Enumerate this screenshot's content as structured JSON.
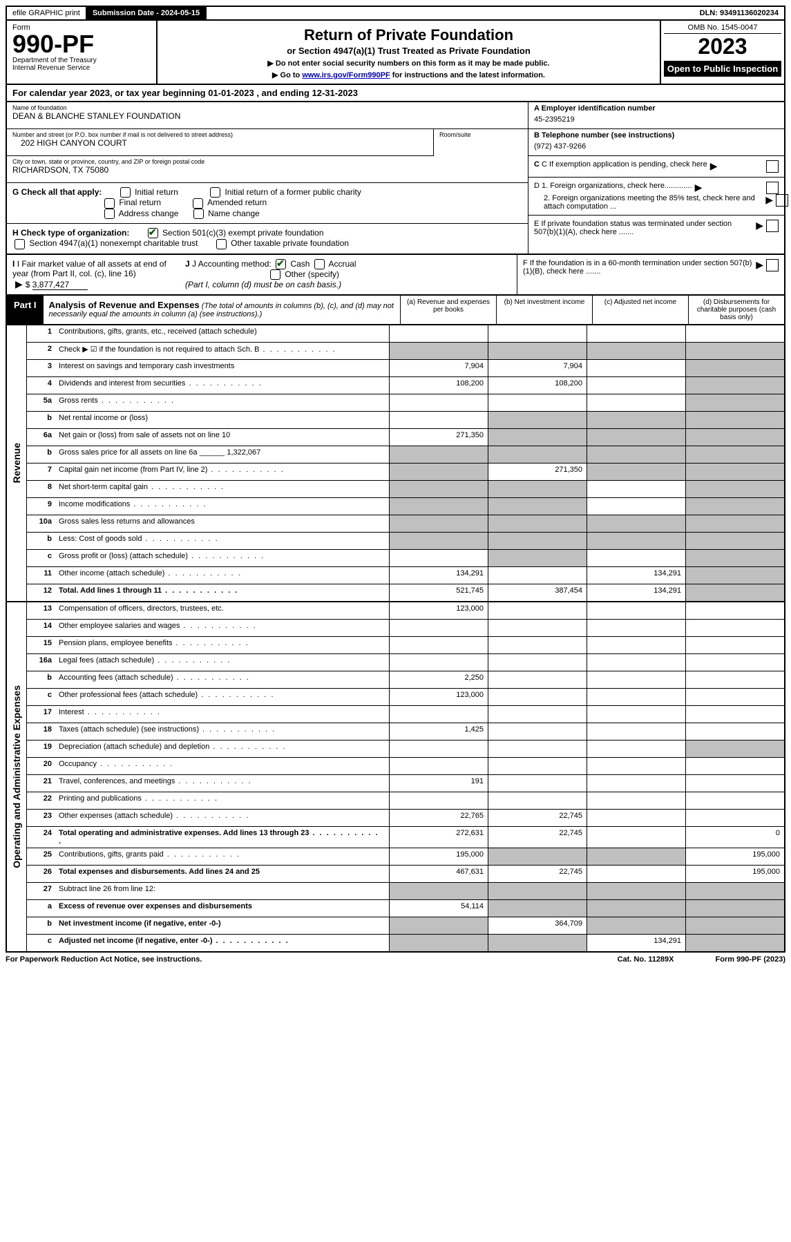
{
  "topbar": {
    "efile": "efile GRAPHIC print",
    "submission_label": "Submission Date - 2024-05-15",
    "dln": "DLN: 93491136020234"
  },
  "header": {
    "form_word": "Form",
    "form_num": "990-PF",
    "dept": "Department of the Treasury",
    "irs": "Internal Revenue Service",
    "title": "Return of Private Foundation",
    "subtitle": "or Section 4947(a)(1) Trust Treated as Private Foundation",
    "instr1": "▶ Do not enter social security numbers on this form as it may be made public.",
    "instr2_pre": "▶ Go to ",
    "instr2_link": "www.irs.gov/Form990PF",
    "instr2_post": " for instructions and the latest information.",
    "omb": "OMB No. 1545-0047",
    "year": "2023",
    "open": "Open to Public Inspection"
  },
  "cal": "For calendar year 2023, or tax year beginning 01-01-2023            , and ending 12-31-2023",
  "info": {
    "name_label": "Name of foundation",
    "name": "DEAN & BLANCHE STANLEY FOUNDATION",
    "addr_label": "Number and street (or P.O. box number if mail is not delivered to street address)",
    "addr": "202 HIGH CANYON COURT",
    "room_label": "Room/suite",
    "city_label": "City or town, state or province, country, and ZIP or foreign postal code",
    "city": "RICHARDSON, TX  75080",
    "ein_label": "A Employer identification number",
    "ein": "45-2395219",
    "phone_label": "B Telephone number (see instructions)",
    "phone": "(972) 437-9266",
    "c_label": "C If exemption application is pending, check here",
    "g_label": "G Check all that apply:",
    "g_opts": [
      "Initial return",
      "Final return",
      "Address change",
      "Initial return of a former public charity",
      "Amended return",
      "Name change"
    ],
    "d1": "D 1. Foreign organizations, check here.............",
    "d2": "2. Foreign organizations meeting the 85% test, check here and attach computation ...",
    "e": "E  If private foundation status was terminated under section 507(b)(1)(A), check here .......",
    "f": "F  If the foundation is in a 60-month termination under section 507(b)(1)(B), check here .......",
    "h_label": "H Check type of organization:",
    "h1": "Section 501(c)(3) exempt private foundation",
    "h2": "Section 4947(a)(1) nonexempt charitable trust",
    "h3": "Other taxable private foundation",
    "i_label": "I Fair market value of all assets at end of year (from Part II, col. (c), line 16)",
    "i_val": "3,877,427",
    "j_label": "J Accounting method:",
    "j_cash": "Cash",
    "j_accrual": "Accrual",
    "j_other": "Other (specify)",
    "j_note": "(Part I, column (d) must be on cash basis.)"
  },
  "part1": {
    "label": "Part I",
    "title": "Analysis of Revenue and Expenses",
    "title_note": "(The total of amounts in columns (b), (c), and (d) may not necessarily equal the amounts in column (a) (see instructions).)",
    "cols": {
      "a": "(a)   Revenue and expenses per books",
      "b": "(b)   Net investment income",
      "c": "(c)   Adjusted net income",
      "d": "(d)  Disbursements for charitable purposes (cash basis only)"
    }
  },
  "sides": {
    "revenue": "Revenue",
    "expenses": "Operating and Administrative Expenses"
  },
  "rows": [
    {
      "n": "1",
      "label": "Contributions, gifts, grants, etc., received (attach schedule)",
      "a": "",
      "b": "",
      "c": "",
      "d": "",
      "grey_d": false
    },
    {
      "n": "2",
      "label": "Check ▶ ☑ if the foundation is not required to attach Sch. B",
      "dotted": true,
      "a": "",
      "b": "",
      "c": "",
      "d": "",
      "grey_all": true,
      "noborder": true
    },
    {
      "n": "3",
      "label": "Interest on savings and temporary cash investments",
      "a": "7,904",
      "b": "7,904",
      "c": "",
      "d": "",
      "grey_d": true
    },
    {
      "n": "4",
      "label": "Dividends and interest from securities",
      "dotted": true,
      "a": "108,200",
      "b": "108,200",
      "c": "",
      "d": "",
      "grey_d": true
    },
    {
      "n": "5a",
      "label": "Gross rents",
      "dotted": true,
      "a": "",
      "b": "",
      "c": "",
      "d": "",
      "grey_d": true
    },
    {
      "n": "b",
      "label": "Net rental income or (loss)",
      "a": "",
      "b": "",
      "c": "",
      "d": "",
      "grey_bcd": true
    },
    {
      "n": "6a",
      "label": "Net gain or (loss) from sale of assets not on line 10",
      "a": "271,350",
      "b": "",
      "c": "",
      "d": "",
      "grey_bcd": true
    },
    {
      "n": "b",
      "label": "Gross sales price for all assets on line 6a ______ 1,322,067",
      "a": "",
      "b": "",
      "c": "",
      "d": "",
      "grey_all": true
    },
    {
      "n": "7",
      "label": "Capital gain net income (from Part IV, line 2)",
      "dotted": true,
      "a": "",
      "b": "271,350",
      "c": "",
      "d": "",
      "grey_a": true,
      "grey_cd": true
    },
    {
      "n": "8",
      "label": "Net short-term capital gain",
      "dotted": true,
      "a": "",
      "b": "",
      "c": "",
      "d": "",
      "grey_ab": true,
      "grey_d": true
    },
    {
      "n": "9",
      "label": "Income modifications",
      "dotted": true,
      "a": "",
      "b": "",
      "c": "",
      "d": "",
      "grey_ab": true,
      "grey_d": true
    },
    {
      "n": "10a",
      "label": "Gross sales less returns and allowances",
      "a": "",
      "b": "",
      "c": "",
      "d": "",
      "grey_all": true
    },
    {
      "n": "b",
      "label": "Less: Cost of goods sold",
      "dotted": true,
      "a": "",
      "b": "",
      "c": "",
      "d": "",
      "grey_all": true
    },
    {
      "n": "c",
      "label": "Gross profit or (loss) (attach schedule)",
      "dotted": true,
      "a": "",
      "b": "",
      "c": "",
      "d": "",
      "grey_b": true,
      "grey_d": true
    },
    {
      "n": "11",
      "label": "Other income (attach schedule)",
      "dotted": true,
      "a": "134,291",
      "b": "",
      "c": "134,291",
      "d": "",
      "grey_d": true
    },
    {
      "n": "12",
      "label": "Total. Add lines 1 through 11",
      "dotted": true,
      "bold": true,
      "a": "521,745",
      "b": "387,454",
      "c": "134,291",
      "d": "",
      "grey_d": true
    }
  ],
  "exp_rows": [
    {
      "n": "13",
      "label": "Compensation of officers, directors, trustees, etc.",
      "a": "123,000",
      "b": "",
      "c": "",
      "d": ""
    },
    {
      "n": "14",
      "label": "Other employee salaries and wages",
      "dotted": true,
      "a": "",
      "b": "",
      "c": "",
      "d": ""
    },
    {
      "n": "15",
      "label": "Pension plans, employee benefits",
      "dotted": true,
      "a": "",
      "b": "",
      "c": "",
      "d": ""
    },
    {
      "n": "16a",
      "label": "Legal fees (attach schedule)",
      "dotted": true,
      "a": "",
      "b": "",
      "c": "",
      "d": ""
    },
    {
      "n": "b",
      "label": "Accounting fees (attach schedule)",
      "dotted": true,
      "a": "2,250",
      "b": "",
      "c": "",
      "d": ""
    },
    {
      "n": "c",
      "label": "Other professional fees (attach schedule)",
      "dotted": true,
      "a": "123,000",
      "b": "",
      "c": "",
      "d": ""
    },
    {
      "n": "17",
      "label": "Interest",
      "dotted": true,
      "a": "",
      "b": "",
      "c": "",
      "d": ""
    },
    {
      "n": "18",
      "label": "Taxes (attach schedule) (see instructions)",
      "dotted": true,
      "a": "1,425",
      "b": "",
      "c": "",
      "d": ""
    },
    {
      "n": "19",
      "label": "Depreciation (attach schedule) and depletion",
      "dotted": true,
      "a": "",
      "b": "",
      "c": "",
      "d": "",
      "grey_d": true
    },
    {
      "n": "20",
      "label": "Occupancy",
      "dotted": true,
      "a": "",
      "b": "",
      "c": "",
      "d": ""
    },
    {
      "n": "21",
      "label": "Travel, conferences, and meetings",
      "dotted": true,
      "a": "191",
      "b": "",
      "c": "",
      "d": ""
    },
    {
      "n": "22",
      "label": "Printing and publications",
      "dotted": true,
      "a": "",
      "b": "",
      "c": "",
      "d": ""
    },
    {
      "n": "23",
      "label": "Other expenses (attach schedule)",
      "dotted": true,
      "a": "22,765",
      "b": "22,745",
      "c": "",
      "d": ""
    },
    {
      "n": "24",
      "label": "Total operating and administrative expenses. Add lines 13 through 23",
      "dotted": true,
      "bold": true,
      "a": "272,631",
      "b": "22,745",
      "c": "",
      "d": "0"
    },
    {
      "n": "25",
      "label": "Contributions, gifts, grants paid",
      "dotted": true,
      "a": "195,000",
      "b": "",
      "c": "",
      "d": "195,000",
      "grey_bc": true
    },
    {
      "n": "26",
      "label": "Total expenses and disbursements. Add lines 24 and 25",
      "bold": true,
      "a": "467,631",
      "b": "22,745",
      "c": "",
      "d": "195,000"
    },
    {
      "n": "27",
      "label": "Subtract line 26 from line 12:",
      "a": "",
      "b": "",
      "c": "",
      "d": "",
      "grey_all": true
    },
    {
      "n": "a",
      "label": "Excess of revenue over expenses and disbursements",
      "bold": true,
      "a": "54,114",
      "b": "",
      "c": "",
      "d": "",
      "grey_bcd": true
    },
    {
      "n": "b",
      "label": "Net investment income (if negative, enter -0-)",
      "bold": true,
      "a": "",
      "b": "364,709",
      "c": "",
      "d": "",
      "grey_a": true,
      "grey_cd": true
    },
    {
      "n": "c",
      "label": "Adjusted net income (if negative, enter -0-)",
      "dotted": true,
      "bold": true,
      "a": "",
      "b": "",
      "c": "134,291",
      "d": "",
      "grey_ab": true,
      "grey_d": true
    }
  ],
  "footer": {
    "left": "For Paperwork Reduction Act Notice, see instructions.",
    "center": "Cat. No. 11289X",
    "right": "Form 990-PF (2023)"
  }
}
